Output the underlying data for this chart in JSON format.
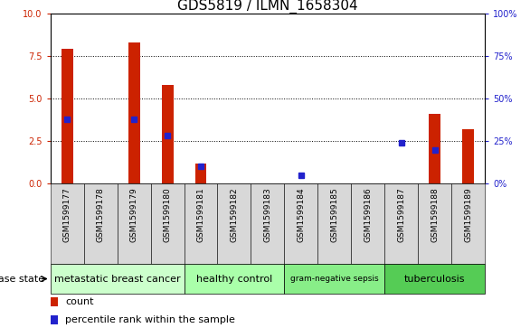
{
  "title": "GDS5819 / ILMN_1658304",
  "samples": [
    "GSM1599177",
    "GSM1599178",
    "GSM1599179",
    "GSM1599180",
    "GSM1599181",
    "GSM1599182",
    "GSM1599183",
    "GSM1599184",
    "GSM1599185",
    "GSM1599186",
    "GSM1599187",
    "GSM1599188",
    "GSM1599189"
  ],
  "count_values": [
    7.9,
    0,
    8.3,
    5.8,
    1.2,
    0,
    0,
    0,
    0,
    0,
    0,
    4.1,
    3.2
  ],
  "percentile_values": [
    38,
    0,
    38,
    28,
    10,
    0,
    0,
    5,
    0,
    0,
    24,
    20,
    0
  ],
  "disease_groups": [
    {
      "label": "metastatic breast cancer",
      "start": 0,
      "end": 4
    },
    {
      "label": "healthy control",
      "start": 4,
      "end": 7
    },
    {
      "label": "gram-negative sepsis",
      "start": 7,
      "end": 10
    },
    {
      "label": "tuberculosis",
      "start": 10,
      "end": 13
    }
  ],
  "group_colors": [
    "#ccffcc",
    "#aaffaa",
    "#88ee88",
    "#55cc55"
  ],
  "ylim_left": [
    0,
    10
  ],
  "ylim_right": [
    0,
    100
  ],
  "yticks_left": [
    0,
    2.5,
    5.0,
    7.5,
    10
  ],
  "yticks_right": [
    0,
    25,
    50,
    75,
    100
  ],
  "bar_color": "#cc2200",
  "dot_color": "#2222cc",
  "bar_width": 0.35,
  "background_color": "#ffffff",
  "grid_color": "#000000",
  "left_tick_color": "#cc2200",
  "right_tick_color": "#2222cc",
  "disease_state_label": "disease state",
  "legend_count": "count",
  "legend_percentile": "percentile rank within the sample",
  "title_fontsize": 11,
  "tick_label_fontsize": 7,
  "sample_label_fontsize": 6.5,
  "group_label_fontsize": 8,
  "small_group_label_fontsize": 6.5,
  "axis_label_fontsize": 8,
  "legend_fontsize": 8
}
